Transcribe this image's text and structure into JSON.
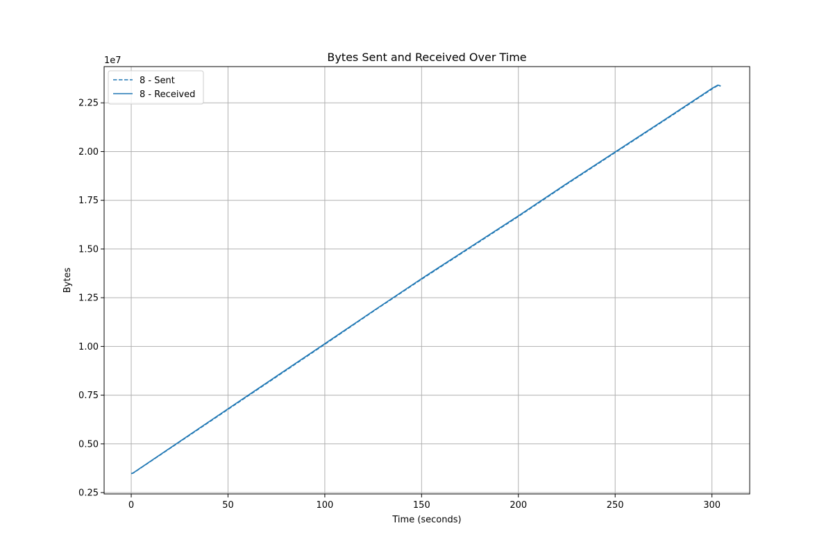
{
  "chart_data": {
    "type": "line",
    "title": "Bytes Sent and Received Over Time",
    "xlabel": "Time (seconds)",
    "ylabel": "Bytes",
    "y_offset_label": "1e7",
    "y_scale_factor": 10000000,
    "xlim": [
      -14,
      319.5
    ],
    "ylim": [
      2430000,
      24360000
    ],
    "xticks": [
      0,
      50,
      100,
      150,
      200,
      250,
      300
    ],
    "xtick_labels": [
      "0",
      "50",
      "100",
      "150",
      "200",
      "250",
      "300"
    ],
    "yticks": [
      2500000,
      5000000,
      7500000,
      10000000,
      12500000,
      15000000,
      17500000,
      20000000,
      22500000
    ],
    "ytick_labels": [
      "0.25",
      "0.50",
      "0.75",
      "1.00",
      "1.25",
      "1.50",
      "1.75",
      "2.00",
      "2.25"
    ],
    "grid": true,
    "legend_position": "upper-left",
    "colors": {
      "series": "#1f77b4",
      "grid": "#b0b0b0",
      "axes": "#000000"
    },
    "series": [
      {
        "name": "8 - Sent",
        "linestyle": "dashed",
        "x": [
          0,
          1,
          25,
          50,
          75,
          100,
          125,
          150,
          175,
          200,
          225,
          250,
          275,
          300,
          303,
          304.5
        ],
        "y": [
          3470000,
          3500000,
          5100000,
          6770000,
          8440000,
          10110000,
          11800000,
          13450000,
          15060000,
          16670000,
          18330000,
          19950000,
          21570000,
          23210000,
          23390000,
          23360000
        ]
      },
      {
        "name": "8 - Received",
        "linestyle": "solid",
        "x": [
          0,
          1,
          25,
          50,
          75,
          100,
          125,
          150,
          175,
          200,
          225,
          250,
          275,
          300,
          303,
          304.5
        ],
        "y": [
          3480000,
          3510000,
          5120000,
          6800000,
          8470000,
          10140000,
          11820000,
          13480000,
          15090000,
          16700000,
          18360000,
          19980000,
          21600000,
          23240000,
          23410000,
          23370000
        ]
      }
    ]
  }
}
